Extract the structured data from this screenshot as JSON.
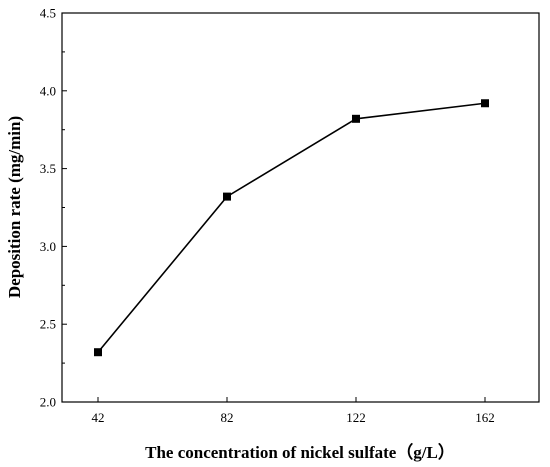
{
  "chart_data": {
    "type": "line",
    "xlabel": "The concentration of nickel sulfate（g/L）",
    "ylabel": "Deposition rate (mg/min)",
    "categories": [
      "42",
      "82",
      "122",
      "162"
    ],
    "x": [
      42,
      82,
      122,
      162
    ],
    "series": [
      {
        "values": [
          2.32,
          3.32,
          3.82,
          3.92
        ]
      }
    ],
    "ylim": [
      2.0,
      4.5
    ],
    "yticks": [
      "2.0",
      "2.5",
      "3.0",
      "3.5",
      "4.0",
      "4.5"
    ],
    "grid": false,
    "legend": "none",
    "marker": "square",
    "colors": {
      "line": "#000000",
      "marker": "#000000"
    }
  }
}
